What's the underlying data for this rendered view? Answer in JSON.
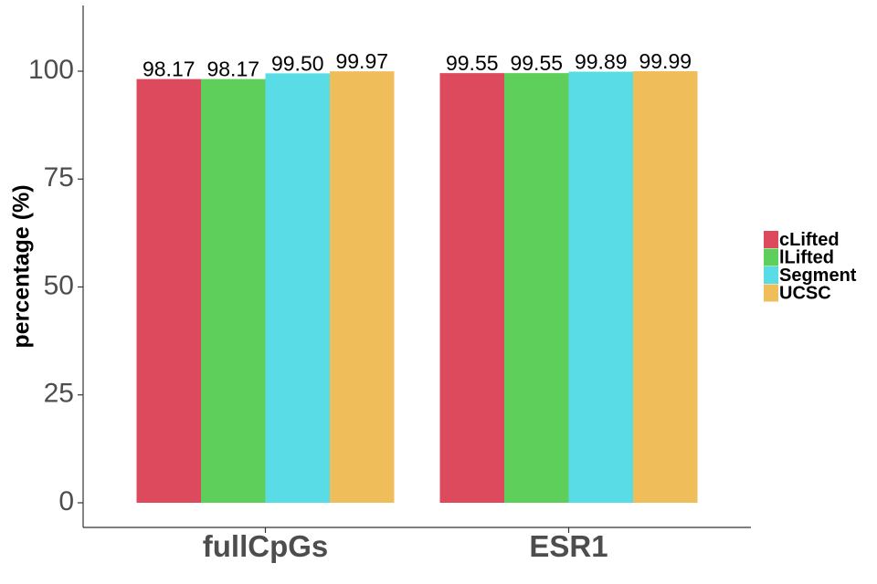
{
  "chart_data": {
    "type": "bar",
    "categories": [
      "fullCpGs",
      "ESR1"
    ],
    "series": [
      {
        "name": "cLifted",
        "color": "#DE4A5D",
        "values": [
          98.17,
          99.55
        ]
      },
      {
        "name": "lLifted",
        "color": "#5ECF5B",
        "values": [
          98.17,
          99.55
        ]
      },
      {
        "name": "Segment",
        "color": "#5ADCE6",
        "values": [
          99.5,
          99.89
        ]
      },
      {
        "name": "UCSC",
        "color": "#EFBE5B",
        "values": [
          99.97,
          99.99
        ]
      }
    ],
    "data_labels": [
      [
        "98.17",
        "98.17",
        "99.50",
        "99.97"
      ],
      [
        "99.55",
        "99.55",
        "99.89",
        "99.99"
      ]
    ],
    "ylabel": "percentage (%)",
    "xlabel": "",
    "yticks": [
      0,
      25,
      50,
      75,
      100
    ],
    "ytick_labels": [
      "0",
      "25",
      "50",
      "75",
      "100"
    ],
    "ylim": [
      -5,
      115
    ],
    "grid": false,
    "legend_position": "right"
  }
}
